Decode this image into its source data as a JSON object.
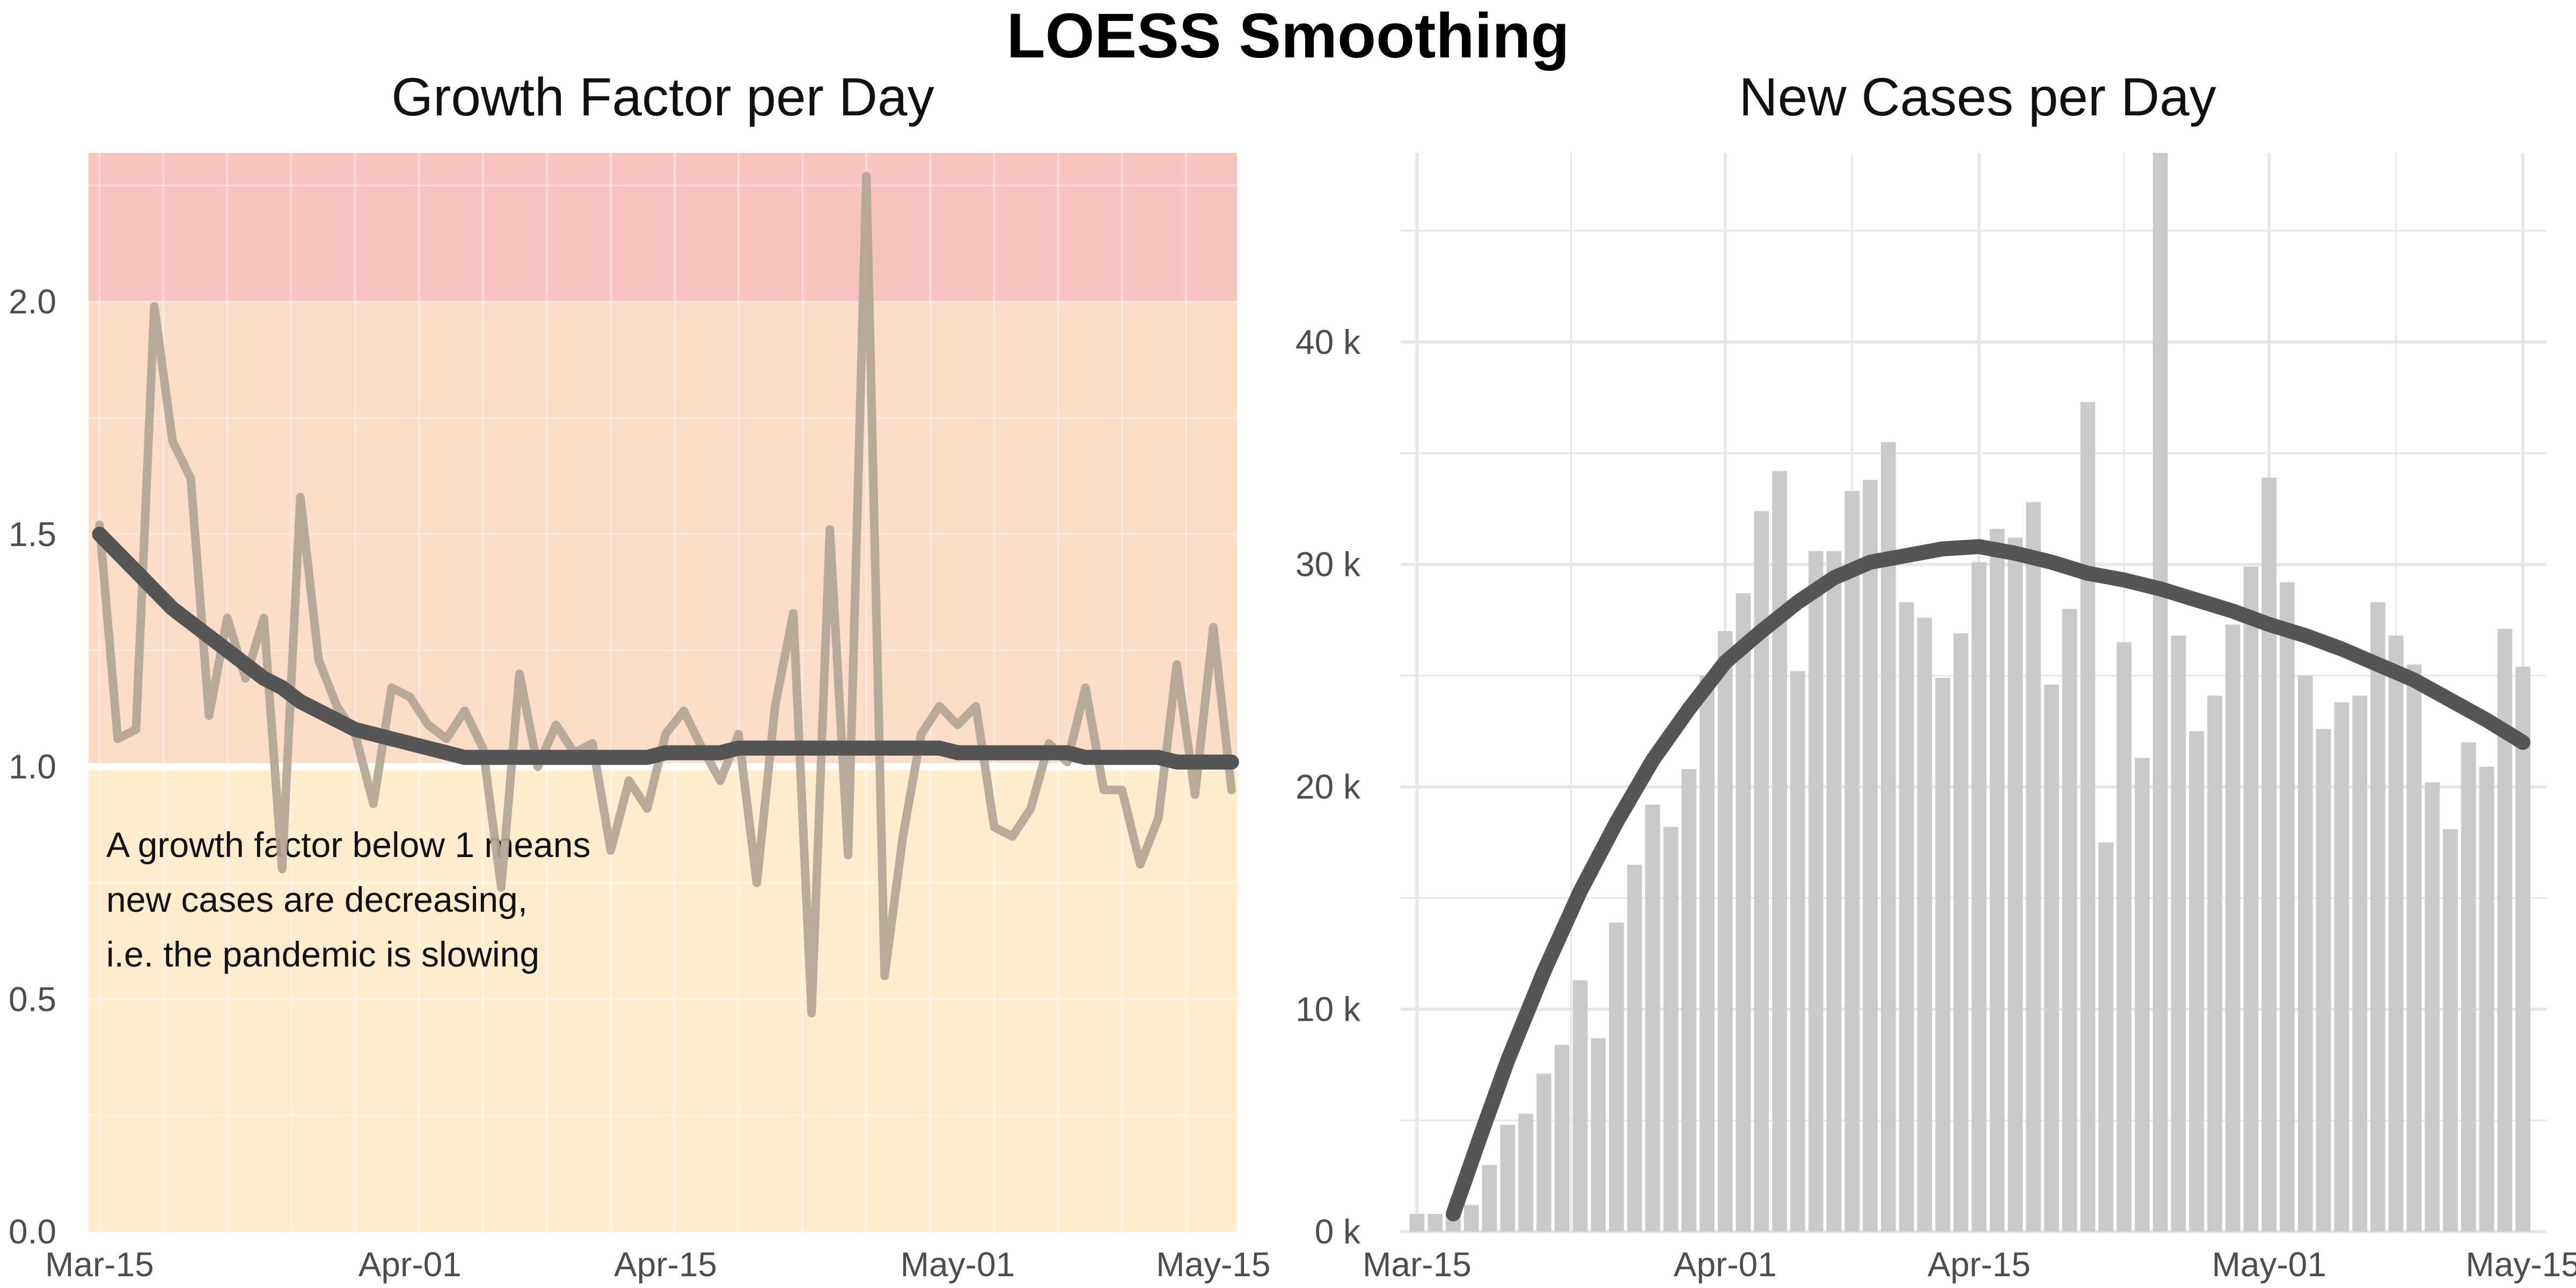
{
  "title": "LOESS Smoothing",
  "colors": {
    "band_high": "#f9c3bf",
    "band_mid": "#fbdcc6",
    "band_low": "#fdedcd",
    "raw_line": "#b2a594",
    "smooth_line": "#555555",
    "bar": "#c9c9c9",
    "grid": "#e6e6e6"
  },
  "chart_data": [
    {
      "type": "line",
      "title": "Growth Factor per Day",
      "xlabel": "",
      "ylabel": "",
      "x_start": "Mar-15",
      "x_tick_labels": [
        "Mar-15",
        "Apr-01",
        "Apr-15",
        "May-01",
        "May-15"
      ],
      "x_tick_days": [
        0,
        17,
        31,
        47,
        61
      ],
      "xlim_days": [
        -0.6,
        62.3
      ],
      "ylim": [
        0,
        2.32
      ],
      "y_ticks": [
        0.0,
        0.5,
        1.0,
        1.5,
        2.0
      ],
      "y_tick_labels": [
        "0.0",
        "0.5",
        "1.0",
        "1.5",
        "2.0"
      ],
      "grid": true,
      "bands": [
        {
          "from": 2.0,
          "to": 2.32,
          "color": "#f9c3bf"
        },
        {
          "from": 1.0,
          "to": 2.0,
          "color": "#fbdcc6"
        },
        {
          "from": 0.0,
          "to": 1.0,
          "color": "#fdedcd"
        }
      ],
      "annotation": [
        "A growth factor below 1 means",
        "new cases are decreasing,",
        "i.e. the pandemic is slowing"
      ],
      "series": [
        {
          "kind": "raw",
          "values": [
            1.52,
            1.06,
            1.08,
            1.99,
            1.7,
            1.62,
            1.11,
            1.32,
            1.19,
            1.32,
            0.78,
            1.58,
            1.23,
            1.13,
            1.07,
            0.92,
            1.17,
            1.15,
            1.09,
            1.06,
            1.12,
            1.04,
            0.74,
            1.2,
            1.0,
            1.09,
            1.03,
            1.05,
            0.82,
            0.97,
            0.91,
            1.07,
            1.12,
            1.04,
            0.97,
            1.07,
            0.75,
            1.13,
            1.33,
            0.47,
            1.51,
            0.81,
            2.27,
            0.55,
            0.85,
            1.07,
            1.13,
            1.09,
            1.13,
            0.87,
            0.85,
            0.91,
            1.05,
            1.01,
            1.17,
            0.95,
            0.95,
            0.79,
            0.89,
            1.22,
            0.94,
            1.3,
            0.95
          ]
        },
        {
          "kind": "loess",
          "values": [
            1.5,
            1.46,
            1.42,
            1.38,
            1.34,
            1.31,
            1.28,
            1.25,
            1.22,
            1.19,
            1.17,
            1.14,
            1.12,
            1.1,
            1.08,
            1.07,
            1.06,
            1.05,
            1.04,
            1.03,
            1.02,
            1.02,
            1.02,
            1.02,
            1.02,
            1.02,
            1.02,
            1.02,
            1.02,
            1.02,
            1.02,
            1.03,
            1.03,
            1.03,
            1.03,
            1.04,
            1.04,
            1.04,
            1.04,
            1.04,
            1.04,
            1.04,
            1.04,
            1.04,
            1.04,
            1.04,
            1.04,
            1.03,
            1.03,
            1.03,
            1.03,
            1.03,
            1.03,
            1.03,
            1.02,
            1.02,
            1.02,
            1.02,
            1.02,
            1.01,
            1.01,
            1.01,
            1.01
          ]
        }
      ]
    },
    {
      "type": "bar",
      "title": "New Cases per Day",
      "xlabel": "",
      "ylabel": "",
      "x_start": "Mar-15",
      "x_tick_labels": [
        "Mar-15",
        "Apr-01",
        "Apr-15",
        "May-01",
        "May-15"
      ],
      "x_tick_days": [
        0,
        17,
        31,
        47,
        61
      ],
      "xlim_days": [
        -0.9,
        62.3
      ],
      "ylim": [
        0,
        48500
      ],
      "y_ticks": [
        0,
        10000,
        20000,
        30000,
        40000
      ],
      "y_tick_labels": [
        "0 k",
        "10 k",
        "20 k",
        "30 k",
        "40 k"
      ],
      "grid": true,
      "series": [
        {
          "kind": "bars",
          "values": [
            800,
            800,
            800,
            1200,
            3000,
            4800,
            5300,
            7100,
            8400,
            11300,
            8700,
            13900,
            16500,
            19200,
            18200,
            20800,
            25000,
            27000,
            28700,
            32400,
            34200,
            25200,
            30600,
            30600,
            33300,
            33800,
            35500,
            28300,
            27600,
            24900,
            26900,
            30100,
            31600,
            31200,
            32800,
            24600,
            28000,
            37300,
            17500,
            26500,
            21300,
            48500,
            26800,
            22500,
            24100,
            27300,
            29900,
            33900,
            29200,
            25000,
            22600,
            23800,
            24100,
            28300,
            26800,
            25500,
            20200,
            18100,
            22000,
            20900,
            27100,
            25400
          ]
        },
        {
          "kind": "loess",
          "x_days": [
            2.0,
            3.5,
            5.0,
            7.0,
            9.0,
            11.0,
            13.0,
            15.0,
            17.0,
            19.0,
            21.0,
            23.0,
            25.0,
            27.0,
            29.0,
            31.0,
            33.0,
            35.0,
            37.0,
            39.0,
            41.0,
            43.0,
            45.0,
            47.0,
            49.0,
            51.0,
            53.0,
            55.0,
            57.0,
            59.0,
            61.0
          ],
          "values": [
            800,
            4300,
            7700,
            11700,
            15300,
            18400,
            21200,
            23500,
            25600,
            27000,
            28300,
            29400,
            30100,
            30400,
            30700,
            30800,
            30500,
            30100,
            29600,
            29300,
            28900,
            28400,
            27900,
            27300,
            26800,
            26200,
            25500,
            24800,
            23900,
            23000,
            22000
          ]
        }
      ]
    }
  ]
}
